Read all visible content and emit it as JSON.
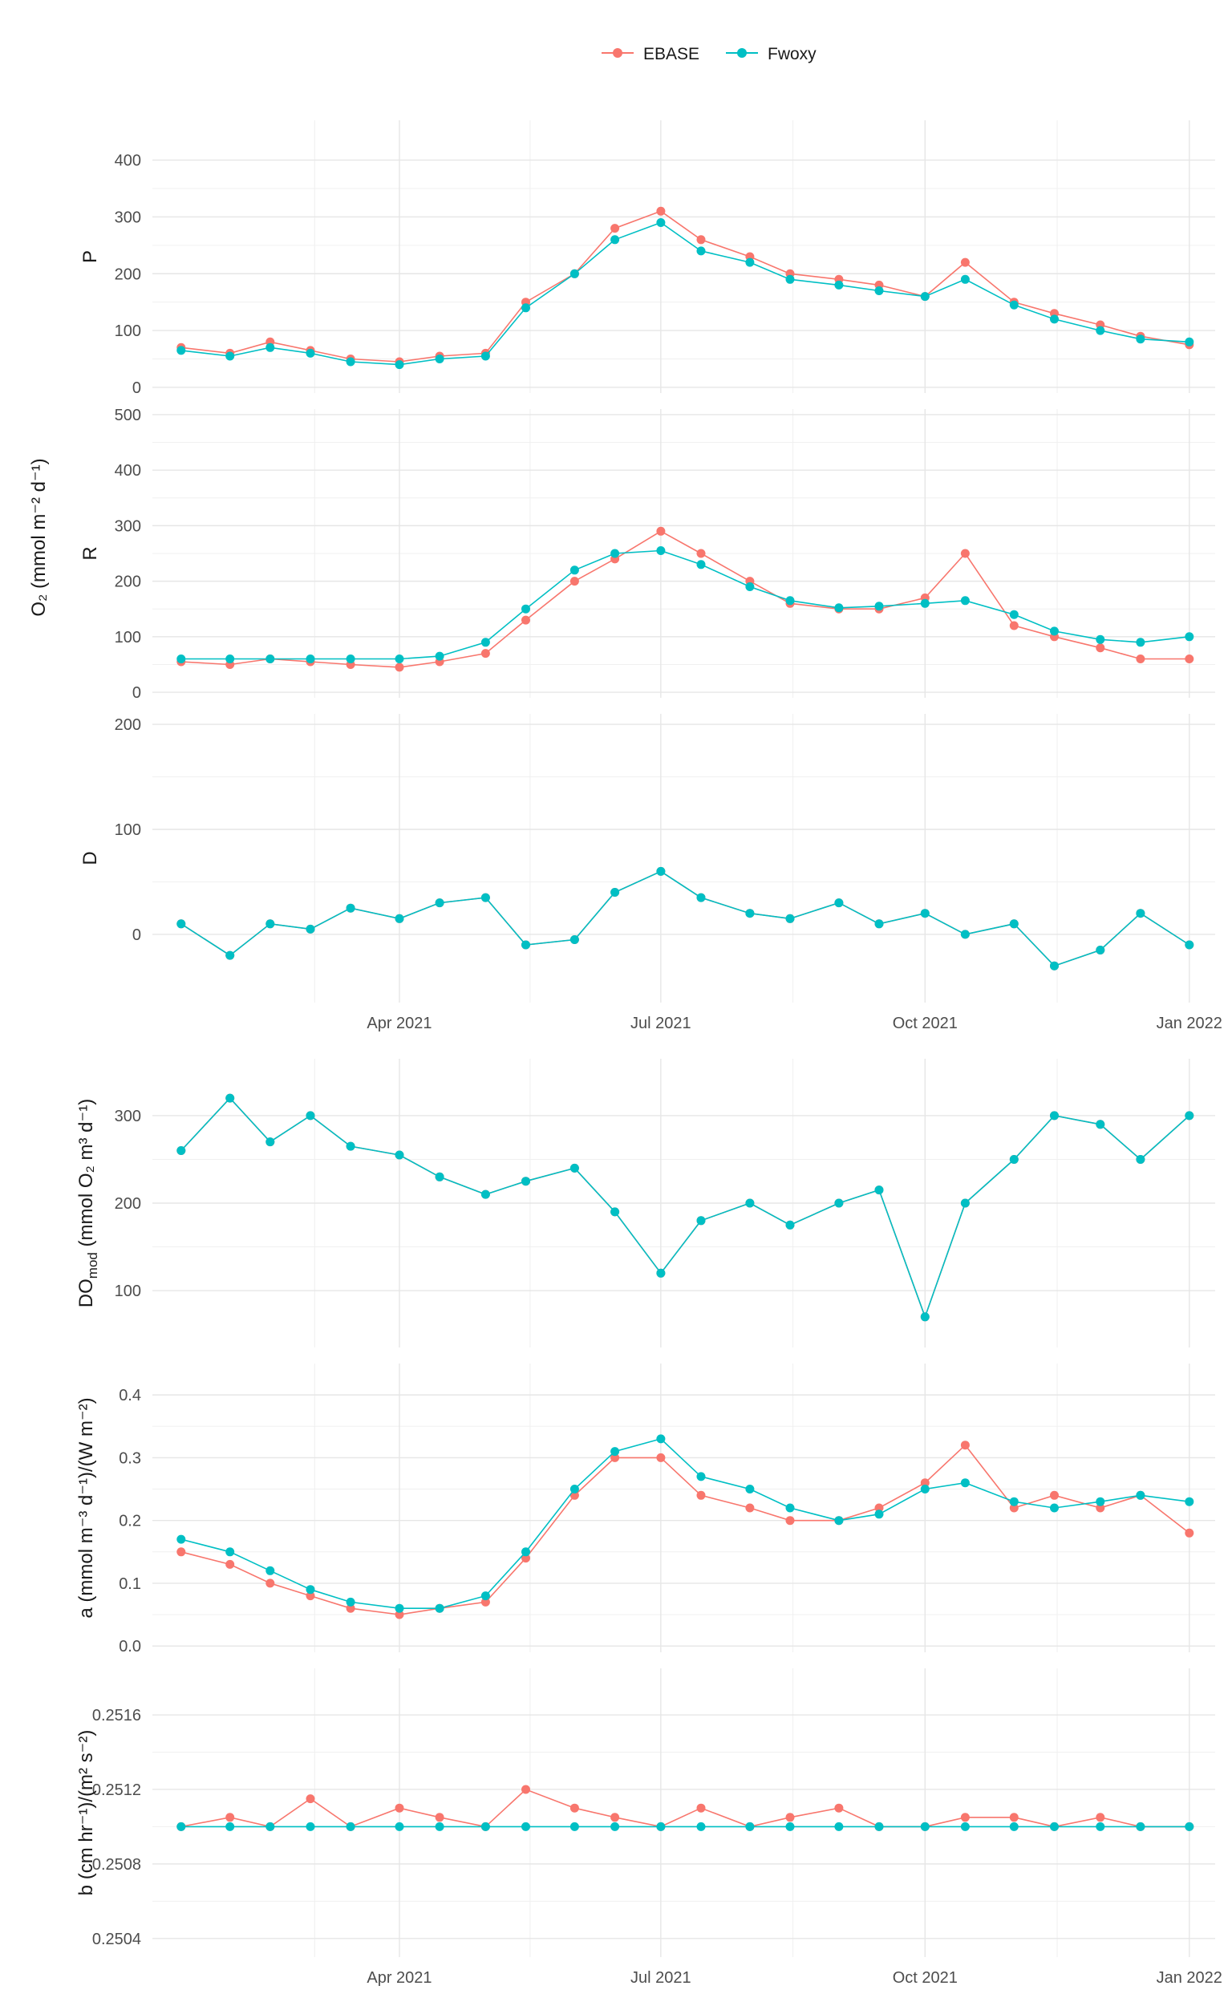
{
  "legend": {
    "items": [
      {
        "name": "EBASE",
        "color": "#F8766D"
      },
      {
        "name": "Fwoxy",
        "color": "#00BFC4"
      }
    ]
  },
  "shared_ylabel": "O₂ (mmol m⁻² d⁻¹)",
  "x_axis": {
    "ticks": [
      "Apr 2021",
      "Jul 2021",
      "Oct 2021",
      "Jan 2022"
    ],
    "tick_dates": [
      "2021-04-01",
      "2021-07-01",
      "2021-10-01",
      "2022-01-01"
    ],
    "range": [
      "2021-01-05",
      "2022-01-10"
    ]
  },
  "chart_data": [
    {
      "id": "P",
      "type": "line",
      "ylabel": "P",
      "ylim": [
        -10,
        470
      ],
      "yticks": [
        0,
        100,
        200,
        300,
        400
      ],
      "yticklabels": [
        "0",
        "100",
        "200",
        "300",
        "400"
      ],
      "grid": true,
      "x": [
        "2021-01-15",
        "2021-02-01",
        "2021-02-15",
        "2021-03-01",
        "2021-03-15",
        "2021-04-01",
        "2021-04-15",
        "2021-05-01",
        "2021-05-15",
        "2021-06-01",
        "2021-06-15",
        "2021-07-01",
        "2021-07-15",
        "2021-08-01",
        "2021-08-15",
        "2021-09-01",
        "2021-09-15",
        "2021-10-01",
        "2021-10-15",
        "2021-11-01",
        "2021-11-15",
        "2021-12-01",
        "2021-12-15",
        "2022-01-01"
      ],
      "series": [
        {
          "name": "EBASE",
          "values": [
            70,
            60,
            80,
            65,
            50,
            45,
            55,
            60,
            150,
            200,
            280,
            310,
            260,
            230,
            200,
            190,
            180,
            160,
            220,
            150,
            130,
            110,
            90,
            75
          ]
        },
        {
          "name": "Fwoxy",
          "values": [
            65,
            55,
            70,
            60,
            45,
            40,
            50,
            55,
            140,
            200,
            260,
            290,
            240,
            220,
            190,
            180,
            170,
            160,
            190,
            145,
            120,
            100,
            85,
            80
          ]
        }
      ]
    },
    {
      "id": "R",
      "type": "line",
      "ylabel": "R",
      "ylim": [
        -10,
        510
      ],
      "yticks": [
        0,
        100,
        200,
        300,
        400,
        500
      ],
      "yticklabels": [
        "0",
        "100",
        "200",
        "300",
        "400",
        "500"
      ],
      "grid": true,
      "x": [
        "2021-01-15",
        "2021-02-01",
        "2021-02-15",
        "2021-03-01",
        "2021-03-15",
        "2021-04-01",
        "2021-04-15",
        "2021-05-01",
        "2021-05-15",
        "2021-06-01",
        "2021-06-15",
        "2021-07-01",
        "2021-07-15",
        "2021-08-01",
        "2021-08-15",
        "2021-09-01",
        "2021-09-15",
        "2021-10-01",
        "2021-10-15",
        "2021-11-01",
        "2021-11-15",
        "2021-12-01",
        "2021-12-15",
        "2022-01-01"
      ],
      "series": [
        {
          "name": "EBASE",
          "values": [
            55,
            50,
            60,
            55,
            50,
            45,
            55,
            70,
            130,
            200,
            240,
            290,
            250,
            200,
            160,
            150,
            150,
            170,
            250,
            120,
            100,
            80,
            60,
            60
          ]
        },
        {
          "name": "Fwoxy",
          "values": [
            60,
            60,
            60,
            60,
            60,
            60,
            65,
            90,
            150,
            220,
            250,
            255,
            230,
            190,
            165,
            152,
            155,
            160,
            165,
            140,
            110,
            95,
            90,
            100
          ]
        }
      ]
    },
    {
      "id": "D",
      "type": "line",
      "ylabel": "D",
      "ylim": [
        -65,
        210
      ],
      "yticks": [
        0,
        100,
        200
      ],
      "yticklabels": [
        "0",
        "100",
        "200"
      ],
      "grid": true,
      "x": [
        "2021-01-15",
        "2021-02-01",
        "2021-02-15",
        "2021-03-01",
        "2021-03-15",
        "2021-04-01",
        "2021-04-15",
        "2021-05-01",
        "2021-05-15",
        "2021-06-01",
        "2021-06-15",
        "2021-07-01",
        "2021-07-15",
        "2021-08-01",
        "2021-08-15",
        "2021-09-01",
        "2021-09-15",
        "2021-10-01",
        "2021-10-15",
        "2021-11-01",
        "2021-11-15",
        "2021-12-01",
        "2021-12-15",
        "2022-01-01"
      ],
      "series": [
        {
          "name": "EBASE",
          "values": [
            10,
            -20,
            10,
            5,
            25,
            15,
            30,
            35,
            -10,
            -5,
            40,
            60,
            35,
            20,
            15,
            30,
            10,
            20,
            0,
            10,
            -30,
            -15,
            20,
            -10
          ]
        },
        {
          "name": "Fwoxy",
          "values": [
            10,
            -20,
            10,
            5,
            25,
            15,
            30,
            35,
            -10,
            -5,
            40,
            60,
            35,
            20,
            15,
            30,
            10,
            20,
            0,
            10,
            -30,
            -15,
            20,
            -10
          ]
        }
      ]
    },
    {
      "id": "DO",
      "type": "line",
      "ylabel": "DO_mod (mmol O₂ m³ d⁻¹)",
      "ylim": [
        35,
        365
      ],
      "yticks": [
        100,
        200,
        300
      ],
      "yticklabels": [
        "100",
        "200",
        "300"
      ],
      "grid": true,
      "x": [
        "2021-01-15",
        "2021-02-01",
        "2021-02-15",
        "2021-03-01",
        "2021-03-15",
        "2021-04-01",
        "2021-04-15",
        "2021-05-01",
        "2021-05-15",
        "2021-06-01",
        "2021-06-15",
        "2021-07-01",
        "2021-07-15",
        "2021-08-01",
        "2021-08-15",
        "2021-09-01",
        "2021-09-15",
        "2021-10-01",
        "2021-10-15",
        "2021-11-01",
        "2021-11-15",
        "2021-12-01",
        "2021-12-15",
        "2022-01-01"
      ],
      "series": [
        {
          "name": "EBASE",
          "values": [
            260,
            320,
            270,
            300,
            265,
            255,
            230,
            210,
            225,
            240,
            190,
            120,
            180,
            200,
            175,
            200,
            215,
            70,
            200,
            250,
            300,
            290,
            250,
            300
          ]
        },
        {
          "name": "Fwoxy",
          "values": [
            260,
            320,
            270,
            300,
            265,
            255,
            230,
            210,
            225,
            240,
            190,
            120,
            180,
            200,
            175,
            200,
            215,
            70,
            200,
            250,
            300,
            290,
            250,
            300
          ]
        }
      ]
    },
    {
      "id": "a",
      "type": "line",
      "ylabel": "a (mmol m⁻³ d⁻¹)/(W m⁻²)",
      "ylim": [
        -0.01,
        0.45
      ],
      "yticks": [
        0.0,
        0.1,
        0.2,
        0.3,
        0.4
      ],
      "yticklabels": [
        "0.0",
        "0.1",
        "0.2",
        "0.3",
        "0.4"
      ],
      "grid": true,
      "x": [
        "2021-01-15",
        "2021-02-01",
        "2021-02-15",
        "2021-03-01",
        "2021-03-15",
        "2021-04-01",
        "2021-04-15",
        "2021-05-01",
        "2021-05-15",
        "2021-06-01",
        "2021-06-15",
        "2021-07-01",
        "2021-07-15",
        "2021-08-01",
        "2021-08-15",
        "2021-09-01",
        "2021-09-15",
        "2021-10-01",
        "2021-10-15",
        "2021-11-01",
        "2021-11-15",
        "2021-12-01",
        "2021-12-15",
        "2022-01-01"
      ],
      "series": [
        {
          "name": "EBASE",
          "values": [
            0.15,
            0.13,
            0.1,
            0.08,
            0.06,
            0.05,
            0.06,
            0.07,
            0.14,
            0.24,
            0.3,
            0.3,
            0.24,
            0.22,
            0.2,
            0.2,
            0.22,
            0.26,
            0.32,
            0.22,
            0.24,
            0.22,
            0.24,
            0.18
          ]
        },
        {
          "name": "Fwoxy",
          "values": [
            0.17,
            0.15,
            0.12,
            0.09,
            0.07,
            0.06,
            0.06,
            0.08,
            0.15,
            0.25,
            0.31,
            0.33,
            0.27,
            0.25,
            0.22,
            0.2,
            0.21,
            0.25,
            0.26,
            0.23,
            0.22,
            0.23,
            0.24,
            0.23
          ]
        }
      ]
    },
    {
      "id": "b",
      "type": "line",
      "ylabel": "b (cm hr⁻¹)/(m² s⁻²)",
      "ylim": [
        0.2503,
        0.25185
      ],
      "yticks": [
        0.2504,
        0.2508,
        0.2512,
        0.2516
      ],
      "yticklabels": [
        "0.2504",
        "0.2508",
        "0.2512",
        "0.2516"
      ],
      "grid": true,
      "x": [
        "2021-01-15",
        "2021-02-01",
        "2021-02-15",
        "2021-03-01",
        "2021-03-15",
        "2021-04-01",
        "2021-04-15",
        "2021-05-01",
        "2021-05-15",
        "2021-06-01",
        "2021-06-15",
        "2021-07-01",
        "2021-07-15",
        "2021-08-01",
        "2021-08-15",
        "2021-09-01",
        "2021-09-15",
        "2021-10-01",
        "2021-10-15",
        "2021-11-01",
        "2021-11-15",
        "2021-12-01",
        "2021-12-15",
        "2022-01-01"
      ],
      "series": [
        {
          "name": "EBASE",
          "values": [
            0.251,
            0.25105,
            0.251,
            0.25115,
            0.251,
            0.2511,
            0.25105,
            0.251,
            0.2512,
            0.2511,
            0.25105,
            0.251,
            0.2511,
            0.251,
            0.25105,
            0.2511,
            0.251,
            0.251,
            0.25105,
            0.25105,
            0.251,
            0.25105,
            0.251,
            0.251
          ]
        },
        {
          "name": "Fwoxy",
          "values": [
            0.251,
            0.251,
            0.251,
            0.251,
            0.251,
            0.251,
            0.251,
            0.251,
            0.251,
            0.251,
            0.251,
            0.251,
            0.251,
            0.251,
            0.251,
            0.251,
            0.251,
            0.251,
            0.251,
            0.251,
            0.251,
            0.251,
            0.251,
            0.251
          ]
        }
      ]
    }
  ]
}
